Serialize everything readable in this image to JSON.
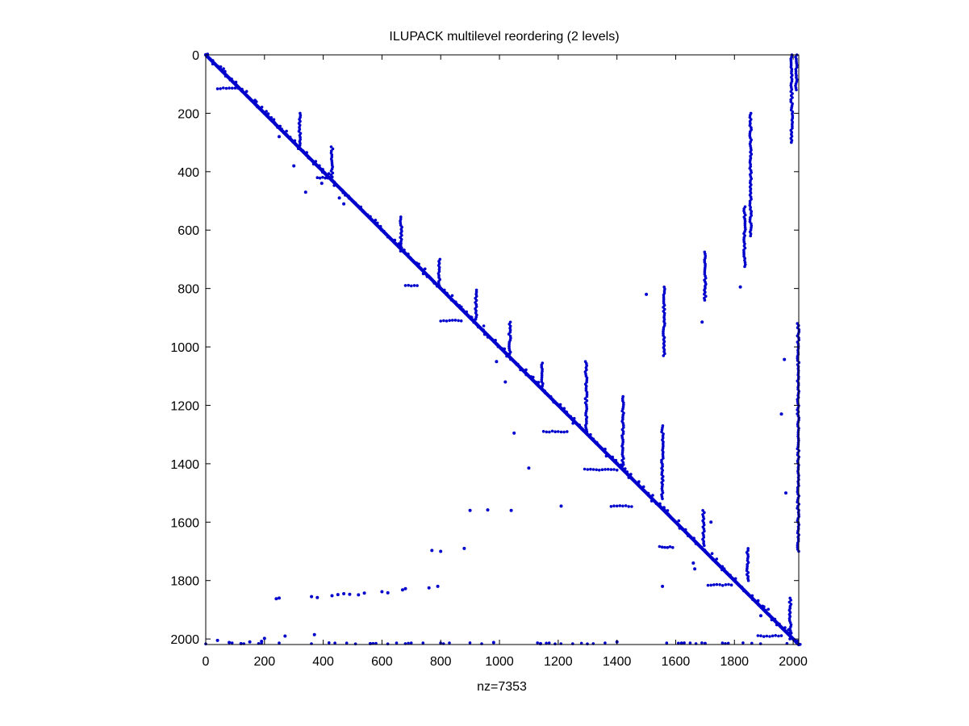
{
  "chart_data": {
    "type": "scatter",
    "plot_style": "spy",
    "title": "ILUPACK multilevel reordering (2 levels)",
    "xlabel": "nz=7353",
    "ylabel": "",
    "xlim": [
      0,
      2019
    ],
    "ylim": [
      0,
      2019
    ],
    "y_reversed": true,
    "grid": false,
    "legend": "none",
    "marker_color": "#0000cc",
    "xticks": [
      0,
      200,
      400,
      600,
      800,
      1000,
      1200,
      1400,
      1600,
      1800,
      2000
    ],
    "yticks": [
      0,
      200,
      400,
      600,
      800,
      1000,
      1200,
      1400,
      1600,
      1800,
      2000
    ],
    "diagonal_main": {
      "from": [
        0,
        0
      ],
      "to": [
        2019,
        2019
      ]
    },
    "column_segments": [
      {
        "x": 320,
        "y0": 200,
        "y1": 310
      },
      {
        "x": 430,
        "y0": 315,
        "y1": 425
      },
      {
        "x": 665,
        "y0": 555,
        "y1": 660
      },
      {
        "x": 795,
        "y0": 700,
        "y1": 790
      },
      {
        "x": 920,
        "y0": 805,
        "y1": 905
      },
      {
        "x": 1035,
        "y0": 915,
        "y1": 1025
      },
      {
        "x": 1145,
        "y0": 1055,
        "y1": 1140
      },
      {
        "x": 1295,
        "y0": 1050,
        "y1": 1290
      },
      {
        "x": 1420,
        "y0": 1170,
        "y1": 1410
      },
      {
        "x": 1560,
        "y0": 795,
        "y1": 1030
      },
      {
        "x": 1555,
        "y0": 1270,
        "y1": 1520
      },
      {
        "x": 1700,
        "y0": 675,
        "y1": 840
      },
      {
        "x": 1695,
        "y0": 1560,
        "y1": 1680
      },
      {
        "x": 1835,
        "y0": 520,
        "y1": 725
      },
      {
        "x": 1855,
        "y0": 200,
        "y1": 620
      },
      {
        "x": 1845,
        "y0": 1690,
        "y1": 1800
      },
      {
        "x": 1995,
        "y0": 0,
        "y1": 300
      },
      {
        "x": 2010,
        "y0": 0,
        "y1": 120
      },
      {
        "x": 2017,
        "y0": 920,
        "y1": 1700
      },
      {
        "x": 1990,
        "y0": 1860,
        "y1": 2000
      }
    ],
    "row_segments": [
      {
        "y": 115,
        "x0": 40,
        "x1": 110
      },
      {
        "y": 420,
        "x0": 380,
        "x1": 425
      },
      {
        "y": 790,
        "x0": 680,
        "x1": 720
      },
      {
        "y": 910,
        "x0": 800,
        "x1": 870
      },
      {
        "y": 1290,
        "x0": 1150,
        "x1": 1230
      },
      {
        "y": 1420,
        "x0": 1290,
        "x1": 1400
      },
      {
        "y": 1545,
        "x0": 1380,
        "x1": 1450
      },
      {
        "y": 1685,
        "x0": 1545,
        "x1": 1590
      },
      {
        "y": 1815,
        "x0": 1710,
        "x1": 1790
      },
      {
        "y": 1990,
        "x0": 1880,
        "x1": 1960
      },
      {
        "y": 2015,
        "x0": 0,
        "x1": 2019
      }
    ],
    "scattered_points": [
      [
        240,
        1862
      ],
      [
        250,
        1860
      ],
      [
        360,
        1855
      ],
      [
        380,
        1858
      ],
      [
        430,
        1852
      ],
      [
        450,
        1848
      ],
      [
        470,
        1845
      ],
      [
        490,
        1847
      ],
      [
        520,
        1849
      ],
      [
        540,
        1843
      ],
      [
        600,
        1838
      ],
      [
        620,
        1842
      ],
      [
        670,
        1832
      ],
      [
        680,
        1828
      ],
      [
        760,
        1825
      ],
      [
        790,
        1820
      ],
      [
        770,
        1697
      ],
      [
        800,
        1700
      ],
      [
        880,
        1690
      ],
      [
        900,
        1560
      ],
      [
        960,
        1558
      ],
      [
        1040,
        1560
      ],
      [
        1210,
        1545
      ],
      [
        1100,
        1415
      ],
      [
        1050,
        1295
      ],
      [
        1020,
        1120
      ],
      [
        990,
        1050
      ],
      [
        1500,
        820
      ],
      [
        1690,
        915
      ],
      [
        1555,
        1820
      ],
      [
        1820,
        795
      ],
      [
        1720,
        1600
      ],
      [
        1560,
        1550
      ],
      [
        40,
        2005
      ],
      [
        80,
        2012
      ],
      [
        120,
        2016
      ],
      [
        150,
        2010
      ],
      [
        190,
        2008
      ],
      [
        200,
        1998
      ],
      [
        270,
        1990
      ],
      [
        370,
        1985
      ],
      [
        560,
        2016
      ],
      [
        980,
        2012
      ],
      [
        1140,
        2016
      ],
      [
        1400,
        2010
      ],
      [
        1700,
        2015
      ],
      [
        1620,
        2014
      ],
      [
        1970,
        1043
      ],
      [
        1960,
        1230
      ],
      [
        1975,
        1500
      ],
      [
        1900,
        1890
      ],
      [
        1890,
        1920
      ],
      [
        1660,
        1740
      ],
      [
        1665,
        1760
      ],
      [
        455,
        490
      ],
      [
        470,
        510
      ],
      [
        395,
        440
      ],
      [
        340,
        470
      ],
      [
        300,
        380
      ],
      [
        250,
        280
      ]
    ]
  }
}
